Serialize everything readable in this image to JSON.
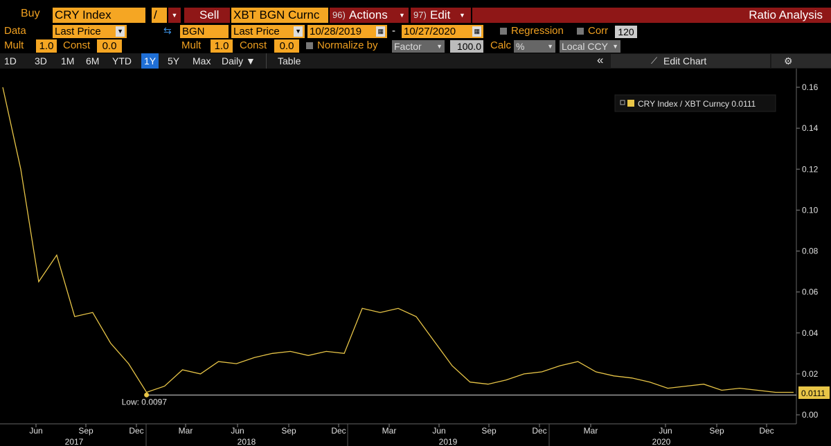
{
  "toolbar": {
    "buy_label": "Buy",
    "buy_security": "CRY Index",
    "operator": "/",
    "sell_label": "Sell",
    "sell_security": "XBT BGN Curnc",
    "actions_num": "96)",
    "actions_label": "Actions",
    "edit_num": "97)",
    "edit_label": "Edit",
    "title": "Ratio Analysis"
  },
  "params": {
    "data_label": "Data",
    "data_value": "Last Price",
    "source": "BGN",
    "source_value": "Last Price",
    "start_date": "10/28/2019",
    "dash": "-",
    "end_date": "10/27/2020",
    "regression_label": "Regression",
    "corr_label": "Corr",
    "corr_value": "120",
    "mult_label": "Mult",
    "mult_value": "1.0",
    "const_label": "Const",
    "const_value": "0.0",
    "mult2_value": "1.0",
    "const2_value": "0.0",
    "normalize_label": "Normalize by",
    "normalize_value": "Factor",
    "factor_value": "100.0",
    "calc_label": "Calc",
    "calc_value": "%",
    "ccy_value": "Local CCY"
  },
  "tabs": [
    "1D",
    "3D",
    "1M",
    "6M",
    "YTD",
    "1Y",
    "5Y",
    "Max"
  ],
  "selected_tab": "1Y",
  "freq_label": "Daily ▼",
  "table_label": "Table",
  "collapse_label": "«",
  "edit_chart_label": "Edit Chart",
  "colors": {
    "line": "#e8c547",
    "accent": "#f5a623",
    "bar": "#8f1717",
    "highlight": "#1f6fd6"
  },
  "chart_data": {
    "type": "line",
    "legend": "CRY Index / XBT Curncy 0.0111",
    "last_value_label": "0.0111",
    "low_label": "Low: 0.0097",
    "low_value": 0.0097,
    "yticks": [
      "0.00",
      "0.02",
      "0.04",
      "0.06",
      "0.08",
      "0.10",
      "0.12",
      "0.14",
      "0.16"
    ],
    "ylim": [
      0,
      0.16
    ],
    "month_ticks": [
      "Jun",
      "Sep",
      "Dec",
      "Mar",
      "Jun",
      "Sep",
      "Dec",
      "Mar",
      "Jun",
      "Sep",
      "Dec",
      "Mar",
      "Jun",
      "Sep",
      "Dec"
    ],
    "year_ticks": [
      "2017",
      "2018",
      "2019",
      "2020"
    ],
    "x": [
      "2017-04",
      "2017-05",
      "2017-06",
      "2017-07",
      "2017-08",
      "2017-09",
      "2017-10",
      "2017-11",
      "2017-12",
      "2018-01",
      "2018-02",
      "2018-03",
      "2018-04",
      "2018-05",
      "2018-06",
      "2018-07",
      "2018-08",
      "2018-09",
      "2018-10",
      "2018-11",
      "2018-12",
      "2019-01",
      "2019-02",
      "2019-03",
      "2019-04",
      "2019-05",
      "2019-06",
      "2019-07",
      "2019-08",
      "2019-09",
      "2019-10",
      "2019-11",
      "2019-12",
      "2020-01",
      "2020-02",
      "2020-03",
      "2020-04",
      "2020-05",
      "2020-06",
      "2020-07",
      "2020-08",
      "2020-09",
      "2020-10",
      "2020-11",
      "2020-12"
    ],
    "values": [
      0.16,
      0.12,
      0.065,
      0.078,
      0.048,
      0.05,
      0.035,
      0.025,
      0.011,
      0.014,
      0.022,
      0.02,
      0.026,
      0.025,
      0.028,
      0.03,
      0.031,
      0.029,
      0.031,
      0.03,
      0.052,
      0.05,
      0.052,
      0.048,
      0.036,
      0.024,
      0.016,
      0.015,
      0.017,
      0.02,
      0.021,
      0.024,
      0.026,
      0.021,
      0.019,
      0.018,
      0.016,
      0.013,
      0.014,
      0.015,
      0.012,
      0.013,
      0.012,
      0.011,
      0.011
    ]
  }
}
